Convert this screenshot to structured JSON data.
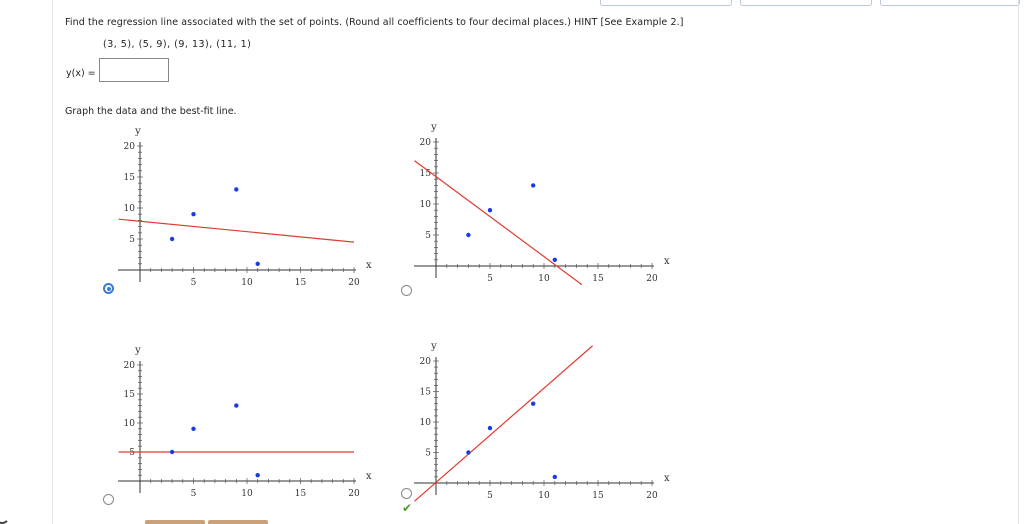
{
  "question": {
    "text": "Find the regression line associated with the set of points. (Round all coefficients to four decimal places.) HINT [See Example 2.]",
    "points": "(3, 5), (5, 9), (9, 13), (11, 1)"
  },
  "answer": {
    "label": "y(x) =",
    "value": ""
  },
  "graph_prompt": "Graph the data and the best-fit line.",
  "options": [
    {
      "selected": true
    },
    {
      "selected": false
    },
    {
      "selected": false
    },
    {
      "selected": false,
      "marked_correct": true
    }
  ],
  "check_icon": "✔",
  "colors": {
    "point": "#1a3be8",
    "line": "#e03c31",
    "radio_selected": "#3a7bd5"
  },
  "chart_data": [
    {
      "type": "scatter",
      "xlabel": "x",
      "ylabel": "y",
      "xlim": [
        0,
        20
      ],
      "ylim": [
        0,
        20
      ],
      "xticks": [
        5,
        10,
        15,
        20
      ],
      "yticks": [
        5,
        10,
        15,
        20
      ],
      "points": [
        [
          3,
          5
        ],
        [
          5,
          9
        ],
        [
          9,
          13
        ],
        [
          11,
          1
        ]
      ],
      "line": {
        "x1": -2,
        "y1": 8.2,
        "x2": 20,
        "y2": 4.5
      }
    },
    {
      "type": "scatter",
      "xlabel": "x",
      "ylabel": "y",
      "xlim": [
        0,
        20
      ],
      "ylim": [
        0,
        20
      ],
      "xticks": [
        5,
        10,
        15,
        20
      ],
      "yticks": [
        5,
        10,
        15,
        20
      ],
      "points": [
        [
          3,
          5
        ],
        [
          5,
          9
        ],
        [
          9,
          13
        ],
        [
          11,
          1
        ]
      ],
      "line": {
        "x1": -2,
        "y1": 17,
        "x2": 13.5,
        "y2": -3
      }
    },
    {
      "type": "scatter",
      "xlabel": "x",
      "ylabel": "y",
      "xlim": [
        0,
        20
      ],
      "ylim": [
        0,
        20
      ],
      "xticks": [
        5,
        10,
        15,
        20
      ],
      "yticks": [
        5,
        10,
        15,
        20
      ],
      "points": [
        [
          3,
          5
        ],
        [
          5,
          9
        ],
        [
          9,
          13
        ],
        [
          11,
          1
        ]
      ],
      "line": {
        "x1": -2,
        "y1": 5,
        "x2": 20,
        "y2": 5
      }
    },
    {
      "type": "scatter",
      "xlabel": "x",
      "ylabel": "y",
      "xlim": [
        0,
        20
      ],
      "ylim": [
        0,
        20
      ],
      "xticks": [
        5,
        10,
        15,
        20
      ],
      "yticks": [
        5,
        10,
        15,
        20
      ],
      "points": [
        [
          3,
          5
        ],
        [
          5,
          9
        ],
        [
          9,
          13
        ],
        [
          11,
          1
        ]
      ],
      "line": {
        "x1": -2,
        "y1": -3,
        "x2": 14.5,
        "y2": 22.5
      }
    }
  ]
}
